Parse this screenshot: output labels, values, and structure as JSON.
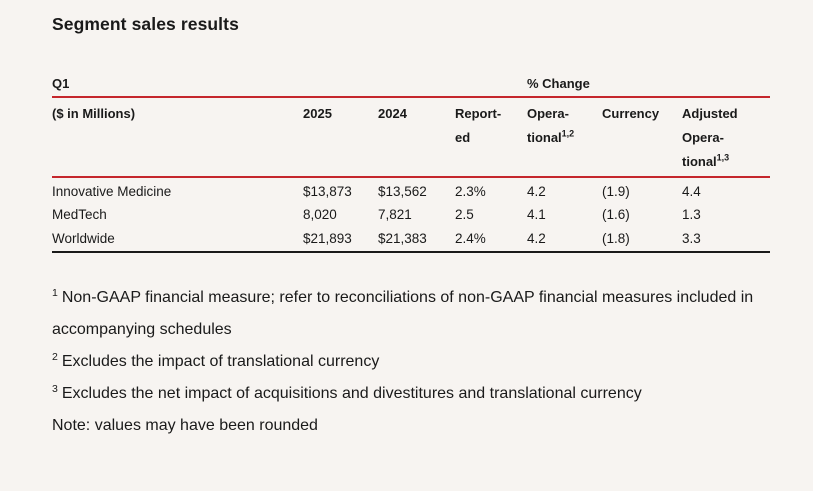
{
  "title": "Segment sales results",
  "colors": {
    "background": "#f7f4f1",
    "accent_red": "#c5262c",
    "text": "#1a1a1a"
  },
  "table": {
    "period": "Q1",
    "change_group": "% Change",
    "headers": {
      "segment": "($ in Millions)",
      "y2025": "2025",
      "y2024": "2024",
      "reported_l1": "Report-",
      "reported_l2": "ed",
      "operational_l1": "Opera-",
      "operational_l2": "tional",
      "operational_sup": "1,2",
      "currency": "Currency",
      "adjusted_l1": "Adjusted",
      "adjusted_l2": "Opera-",
      "adjusted_l3": "tional",
      "adjusted_sup": "1,3"
    },
    "rows": [
      {
        "segment": "Innovative Medicine",
        "y2025": "$13,873",
        "y2024": "$13,562",
        "reported": "2.3%",
        "operational": "4.2",
        "currency": "(1.9)",
        "adjusted_operational": "4.4"
      },
      {
        "segment": "MedTech",
        "y2025": "8,020",
        "y2024": "7,821",
        "reported": "2.5",
        "operational": "4.1",
        "currency": "(1.6)",
        "adjusted_operational": "1.3"
      },
      {
        "segment": "Worldwide",
        "y2025": "$21,893",
        "y2024": "$21,383",
        "reported": "2.4%",
        "operational": "4.2",
        "currency": "(1.8)",
        "adjusted_operational": "3.3"
      }
    ]
  },
  "footnotes": [
    {
      "marker": "1",
      "text": "Non-GAAP financial measure; refer to reconciliations of non-GAAP financial measures included in accompanying schedules"
    },
    {
      "marker": "2",
      "text": "Excludes the impact of translational currency"
    },
    {
      "marker": "3",
      "text": "Excludes the net impact of acquisitions and divestitures and translational currency"
    }
  ],
  "note": "Note: values may have been rounded"
}
